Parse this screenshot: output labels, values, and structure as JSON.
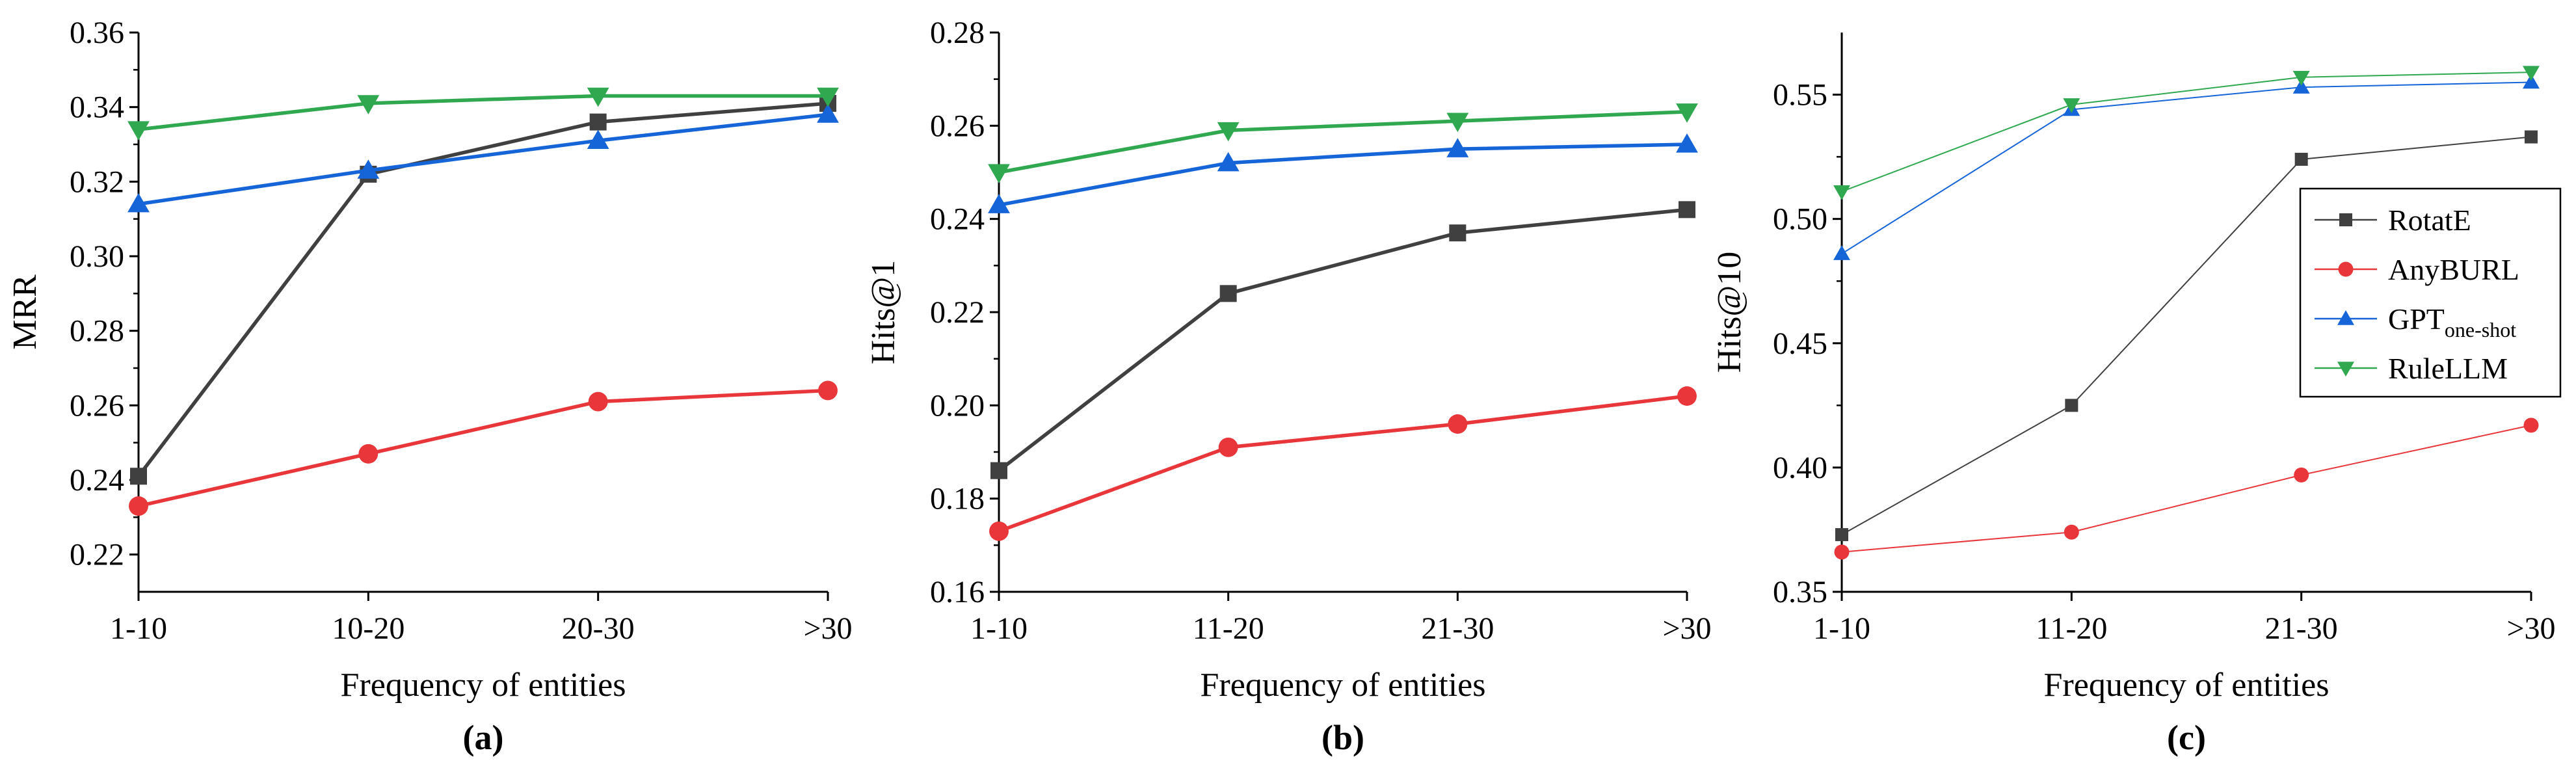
{
  "chart_data": [
    {
      "type": "line",
      "panel_label": "(a)",
      "xlabel": "Frequency of entities",
      "ylabel": "MRR",
      "categories": [
        "1-10",
        "10-20",
        "20-30",
        ">30"
      ],
      "ylim": [
        0.21,
        0.36
      ],
      "yticks": [
        0.22,
        0.24,
        0.26,
        0.28,
        0.3,
        0.32,
        0.34,
        0.36
      ],
      "ytick_labels": [
        "0.22",
        "0.24",
        "0.26",
        "0.28",
        "0.30",
        "0.32",
        "0.34",
        "0.36"
      ],
      "legend": false,
      "series": [
        {
          "name": "RotatE",
          "values": [
            0.241,
            0.322,
            0.336,
            0.341
          ]
        },
        {
          "name": "AnyBURL",
          "values": [
            0.233,
            0.247,
            0.261,
            0.264
          ]
        },
        {
          "name": "GPT",
          "values": [
            0.314,
            0.323,
            0.331,
            0.338
          ]
        },
        {
          "name": "RuleLLM",
          "values": [
            0.334,
            0.341,
            0.343,
            0.343
          ]
        }
      ]
    },
    {
      "type": "line",
      "panel_label": "(b)",
      "xlabel": "Frequency of entities",
      "ylabel": "Hits@1",
      "categories": [
        "1-10",
        "11-20",
        "21-30",
        ">30"
      ],
      "ylim": [
        0.16,
        0.28
      ],
      "yticks": [
        0.16,
        0.18,
        0.2,
        0.22,
        0.24,
        0.26,
        0.28
      ],
      "ytick_labels": [
        "0.16",
        "0.18",
        "0.20",
        "0.22",
        "0.24",
        "0.26",
        "0.28"
      ],
      "legend": false,
      "series": [
        {
          "name": "RotatE",
          "values": [
            0.186,
            0.224,
            0.237,
            0.242
          ]
        },
        {
          "name": "AnyBURL",
          "values": [
            0.173,
            0.191,
            0.196,
            0.202
          ]
        },
        {
          "name": "GPT",
          "values": [
            0.243,
            0.252,
            0.255,
            0.256
          ]
        },
        {
          "name": "RuleLLM",
          "values": [
            0.25,
            0.259,
            0.261,
            0.263
          ]
        }
      ]
    },
    {
      "type": "line",
      "panel_label": "(c)",
      "xlabel": "Frequency of entities",
      "ylabel": "Hits@10",
      "categories": [
        "1-10",
        "11-20",
        "21-30",
        ">30"
      ],
      "ylim": [
        0.35,
        0.575
      ],
      "yticks": [
        0.35,
        0.4,
        0.45,
        0.5,
        0.55
      ],
      "ytick_labels": [
        "0.35",
        "0.40",
        "0.45",
        "0.50",
        "0.55"
      ],
      "legend": true,
      "legend_position": "right",
      "series": [
        {
          "name": "RotatE",
          "values": [
            0.373,
            0.425,
            0.524,
            0.533
          ]
        },
        {
          "name": "AnyBURL",
          "values": [
            0.366,
            0.374,
            0.397,
            0.417
          ]
        },
        {
          "name": "GPT",
          "values": [
            0.486,
            0.544,
            0.553,
            0.555
          ]
        },
        {
          "name": "RuleLLM",
          "values": [
            0.511,
            0.546,
            0.557,
            0.559
          ]
        }
      ]
    }
  ],
  "legend_entries": [
    {
      "name": "RotatE",
      "label": "RotatE"
    },
    {
      "name": "AnyBURL",
      "label": "AnyBURL"
    },
    {
      "name": "GPT",
      "label": "GPT",
      "subscript": "one-shot"
    },
    {
      "name": "RuleLLM",
      "label": "RuleLLM"
    }
  ],
  "series_styles": {
    "RotatE": {
      "color": "#404040",
      "marker": "square"
    },
    "AnyBURL": {
      "color": "#e8363a",
      "marker": "circle"
    },
    "GPT": {
      "color": "#1565d8",
      "marker": "triangle-up"
    },
    "RuleLLM": {
      "color": "#2fa84f",
      "marker": "triangle-down"
    }
  }
}
